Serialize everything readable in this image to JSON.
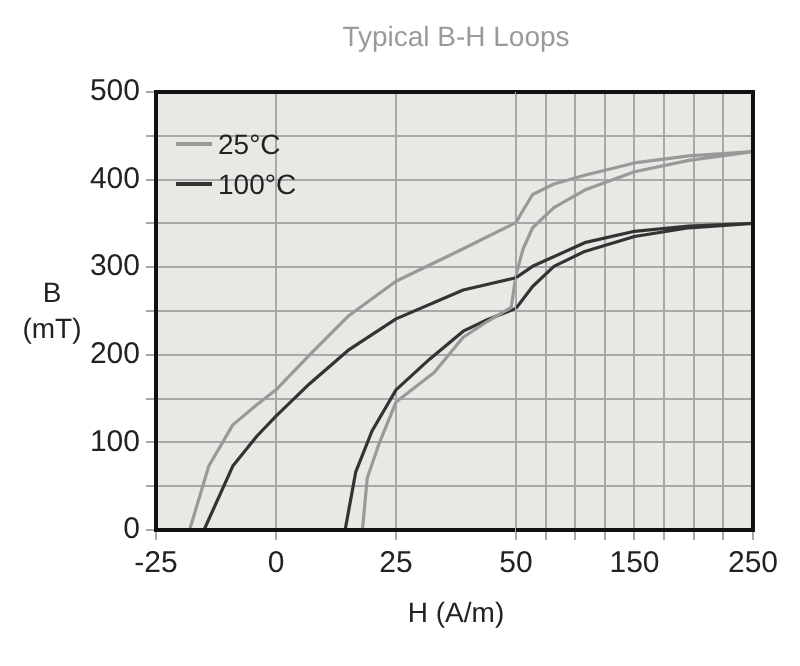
{
  "chart_data": [
    {
      "type": "line",
      "title": "Typical B-H Loops",
      "xlabel": "H (A/m)",
      "ylabel": "B (mT)",
      "xlim": [
        -25,
        50
      ],
      "ylim": [
        0,
        500
      ],
      "xticks": [
        -25,
        0,
        25,
        50
      ],
      "yticks": [
        0,
        {
          "value": 50,
          "label": null
        },
        100,
        {
          "value": 150,
          "label": null
        },
        200,
        {
          "value": 250,
          "label": null
        },
        300,
        {
          "value": 350,
          "label": null
        },
        400,
        {
          "value": 450,
          "label": null
        },
        500
      ],
      "grid": true,
      "legend": "top left",
      "marker": "none",
      "line_style": "solid",
      "series": [
        {
          "name": "25°C",
          "color": "#999999",
          "x": [
            -18,
            -14,
            -9,
            -4,
            0,
            7,
            15,
            25,
            39,
            50
          ],
          "values": [
            0,
            73,
            120,
            143,
            160,
            200,
            244,
            284,
            321,
            351
          ]
        },
        {
          "name": "100°C",
          "color": "#333333",
          "x": [
            -15,
            -9,
            -4,
            0,
            7,
            15,
            25,
            39,
            50
          ],
          "values": [
            0,
            73,
            107,
            130,
            167,
            205,
            241,
            274,
            288
          ]
        },
        {
          "color": "#999999",
          "x": [
            50,
            49,
            44,
            39,
            33,
            25,
            21.5,
            19,
            18
          ],
          "values": [
            291,
            254,
            238,
            220,
            180,
            146,
            99,
            59,
            0
          ]
        },
        {
          "color": "#333333",
          "x": [
            50,
            44,
            39,
            32,
            25,
            20,
            16.6,
            14.4
          ],
          "values": [
            253,
            240,
            227,
            195,
            160,
            113,
            66,
            0
          ]
        }
      ]
    },
    {
      "type": "line",
      "xlim": [
        50,
        250
      ],
      "ylim": [
        0,
        500
      ],
      "tick_labels": "x",
      "xticks": [
        {
          "value": 50,
          "label": null
        },
        {
          "value": 75,
          "label": null
        },
        {
          "value": 100,
          "label": null
        },
        {
          "value": 125,
          "label": null
        },
        150,
        {
          "value": 175,
          "label": null
        },
        {
          "value": 200,
          "label": null
        },
        {
          "value": 225,
          "label": null
        },
        250
      ],
      "yticks": [
        {
          "value": 0,
          "label": null
        },
        {
          "value": 50,
          "label": null
        },
        {
          "value": 100,
          "label": null
        },
        {
          "value": 150,
          "label": null
        },
        {
          "value": 200,
          "label": null
        },
        {
          "value": 250,
          "label": null
        },
        {
          "value": 300,
          "label": null
        },
        {
          "value": 350,
          "label": null
        },
        {
          "value": 400,
          "label": null
        },
        {
          "value": 450,
          "label": null
        },
        {
          "value": 500,
          "label": null
        }
      ],
      "grid": true,
      "marker": "none",
      "line_style": "solid",
      "series": [
        {
          "color": "#999999",
          "x": [
            50,
            56,
            64,
            82,
            108,
            150,
            196,
            250,
            196,
            150,
            108,
            82,
            64,
            56,
            50
          ],
          "values": [
            351,
            365,
            383,
            395,
            405,
            419,
            427,
            432,
            422,
            409,
            388,
            368,
            345,
            321,
            291
          ]
        },
        {
          "color": "#333333",
          "x": [
            50,
            64,
            108,
            150,
            196,
            250,
            196,
            150,
            108,
            82,
            64,
            50
          ],
          "values": [
            288,
            301,
            328,
            341,
            347,
            350,
            345,
            335,
            318,
            301,
            278,
            253
          ]
        }
      ]
    }
  ]
}
